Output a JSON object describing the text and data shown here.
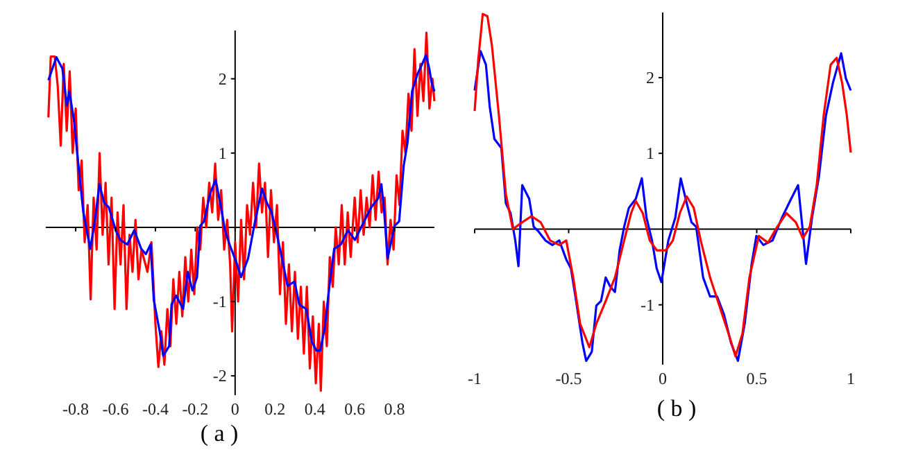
{
  "chart_data": [
    {
      "type": "line",
      "annotations": [
        "( a )"
      ],
      "xlim": [
        -0.95,
        1.0
      ],
      "ylim": [
        -2.26,
        2.65
      ],
      "xticks": [
        -0.8,
        -0.6,
        -0.4,
        -0.2,
        0,
        0.2,
        0.4,
        0.6,
        0.8
      ],
      "yticks": [
        -2,
        -1,
        1,
        2
      ],
      "series": [
        {
          "color": "#ff0000",
          "x": [
            -0.937,
            -0.925,
            -0.905,
            -0.89,
            -0.875,
            -0.86,
            -0.845,
            -0.83,
            -0.815,
            -0.8,
            -0.785,
            -0.77,
            -0.755,
            -0.74,
            -0.725,
            -0.71,
            -0.695,
            -0.68,
            -0.665,
            -0.65,
            -0.635,
            -0.62,
            -0.605,
            -0.59,
            -0.575,
            -0.56,
            -0.545,
            -0.53,
            -0.515,
            -0.5,
            -0.485,
            -0.47,
            -0.44,
            -0.42,
            -0.4,
            -0.385,
            -0.37,
            -0.355,
            -0.34,
            -0.325,
            -0.31,
            -0.295,
            -0.28,
            -0.265,
            -0.25,
            -0.235,
            -0.22,
            -0.205,
            -0.19,
            -0.175,
            -0.16,
            -0.145,
            -0.13,
            -0.115,
            -0.1,
            -0.085,
            -0.07,
            -0.055,
            -0.04,
            -0.025,
            -0.015,
            0.0,
            0.015,
            0.03,
            0.045,
            0.06,
            0.075,
            0.09,
            0.105,
            0.12,
            0.135,
            0.15,
            0.165,
            0.18,
            0.195,
            0.21,
            0.225,
            0.24,
            0.255,
            0.27,
            0.285,
            0.3,
            0.315,
            0.33,
            0.345,
            0.36,
            0.375,
            0.39,
            0.405,
            0.42,
            0.43,
            0.445,
            0.46,
            0.475,
            0.49,
            0.505,
            0.52,
            0.535,
            0.55,
            0.565,
            0.58,
            0.6,
            0.615,
            0.63,
            0.645,
            0.66,
            0.675,
            0.69,
            0.705,
            0.72,
            0.735,
            0.75,
            0.765,
            0.78,
            0.795,
            0.81,
            0.825,
            0.84,
            0.855,
            0.87,
            0.885,
            0.9,
            0.915,
            0.93,
            0.945,
            0.96,
            0.975,
            0.99,
            1.0
          ],
          "values": [
            1.48,
            2.3,
            2.3,
            1.9,
            1.1,
            2.2,
            1.3,
            2.1,
            1.0,
            1.6,
            0.5,
            0.9,
            -0.2,
            0.3,
            -0.97,
            0.4,
            -0.3,
            1.0,
            -0.1,
            0.6,
            -0.5,
            0.4,
            -1.1,
            0.2,
            -0.5,
            0.3,
            -1.1,
            -0.1,
            -0.6,
            0.1,
            -0.7,
            -0.3,
            -0.6,
            -0.2,
            -1.3,
            -1.88,
            -1.4,
            -1.85,
            -1.1,
            -1.6,
            -0.7,
            -1.3,
            -0.6,
            -1.2,
            -0.4,
            -1.0,
            -0.3,
            -0.9,
            0.0,
            -0.3,
            0.4,
            0.0,
            0.6,
            0.2,
            0.86,
            0.1,
            0.5,
            -0.3,
            0.1,
            -0.5,
            -1.4,
            -0.2,
            -1.0,
            0.1,
            -0.7,
            0.3,
            -0.1,
            0.6,
            0.0,
            0.86,
            0.2,
            0.6,
            -0.4,
            0.5,
            -0.2,
            0.3,
            -0.9,
            -0.2,
            -1.3,
            -0.5,
            -1.4,
            -0.6,
            -1.5,
            -0.8,
            -1.7,
            -0.8,
            -1.9,
            -1.2,
            -2.1,
            -1.3,
            -2.2,
            -1.0,
            -1.6,
            -0.4,
            -0.8,
            0.0,
            -0.5,
            0.3,
            -0.5,
            0.2,
            -0.4,
            0.4,
            -0.2,
            0.5,
            -0.1,
            0.4,
            0.0,
            0.7,
            0.1,
            0.75,
            0.2,
            0.4,
            -0.5,
            0.1,
            -0.3,
            0.7,
            0.3,
            1.3,
            1.0,
            1.8,
            1.3,
            2.4,
            1.5,
            2.2,
            1.7,
            2.62,
            1.6,
            2.0,
            1.7
          ]
        },
        {
          "color": "#0000ff",
          "x": [
            -0.937,
            -0.897,
            -0.867,
            -0.844,
            -0.832,
            -0.809,
            -0.786,
            -0.762,
            -0.727,
            -0.704,
            -0.681,
            -0.657,
            -0.634,
            -0.599,
            -0.576,
            -0.541,
            -0.506,
            -0.471,
            -0.448,
            -0.424,
            -0.408,
            -0.378,
            -0.361,
            -0.331,
            -0.319,
            -0.296,
            -0.261,
            -0.238,
            -0.214,
            -0.191,
            -0.175,
            -0.156,
            -0.126,
            -0.098,
            -0.075,
            -0.051,
            -0.028,
            0.007,
            0.03,
            0.065,
            0.1,
            0.135,
            0.159,
            0.182,
            0.205,
            0.24,
            0.263,
            0.298,
            0.322,
            0.357,
            0.385,
            0.408,
            0.427,
            0.45,
            0.473,
            0.497,
            0.531,
            0.566,
            0.601,
            0.636,
            0.683,
            0.718,
            0.734,
            0.748,
            0.765,
            0.8,
            0.823,
            0.846,
            0.865,
            0.888,
            0.916,
            0.939,
            0.958,
            0.974,
            0.986,
            1.0
          ],
          "values": [
            1.98,
            2.29,
            2.14,
            1.64,
            1.83,
            1.45,
            0.83,
            0.21,
            -0.29,
            0.08,
            0.58,
            0.33,
            0.27,
            -0.04,
            -0.17,
            -0.23,
            -0.04,
            -0.29,
            -0.36,
            -0.23,
            -0.98,
            -1.41,
            -1.73,
            -1.6,
            -1.04,
            -0.92,
            -1.1,
            -0.6,
            -0.85,
            -0.67,
            0.02,
            0.08,
            0.45,
            0.64,
            0.33,
            -0.04,
            -0.23,
            -0.48,
            -0.67,
            -0.42,
            0.08,
            0.52,
            0.33,
            0.21,
            -0.04,
            -0.48,
            -0.79,
            -0.73,
            -1.04,
            -1.1,
            -1.54,
            -1.66,
            -1.66,
            -1.35,
            -0.79,
            -0.29,
            -0.23,
            -0.04,
            -0.17,
            0.02,
            0.27,
            0.39,
            0.58,
            0.21,
            -0.42,
            0.02,
            0.08,
            0.83,
            1.14,
            1.83,
            2.07,
            2.2,
            2.32,
            2.14,
            1.95,
            1.83
          ]
        }
      ]
    },
    {
      "type": "line",
      "annotations": [
        "( b )"
      ],
      "xlim": [
        -1,
        1
      ],
      "ylim": [
        -1.79,
        2.86
      ],
      "xticks": [
        -1,
        -0.5,
        0,
        0.5,
        1
      ],
      "yticks": [
        -1,
        1,
        2
      ],
      "series": [
        {
          "color": "#0000ff",
          "x": [
            -1.0,
            -0.969,
            -0.94,
            -0.92,
            -0.895,
            -0.858,
            -0.834,
            -0.809,
            -0.784,
            -0.767,
            -0.747,
            -0.71,
            -0.686,
            -0.661,
            -0.624,
            -0.587,
            -0.55,
            -0.513,
            -0.488,
            -0.464,
            -0.427,
            -0.407,
            -0.377,
            -0.353,
            -0.328,
            -0.303,
            -0.279,
            -0.254,
            -0.229,
            -0.205,
            -0.18,
            -0.143,
            -0.111,
            -0.086,
            -0.057,
            -0.032,
            -0.007,
            0.03,
            0.067,
            0.096,
            0.128,
            0.153,
            0.178,
            0.215,
            0.252,
            0.289,
            0.326,
            0.363,
            0.4,
            0.436,
            0.473,
            0.498,
            0.535,
            0.584,
            0.634,
            0.683,
            0.72,
            0.745,
            0.762,
            0.794,
            0.831,
            0.868,
            0.905,
            0.949,
            0.974,
            1.0
          ],
          "values": [
            1.83,
            2.35,
            2.17,
            1.62,
            1.19,
            1.07,
            0.34,
            0.21,
            -0.15,
            -0.49,
            0.58,
            0.4,
            0.03,
            -0.03,
            -0.15,
            -0.21,
            -0.15,
            -0.4,
            -0.52,
            -0.89,
            -1.5,
            -1.74,
            -1.62,
            -1.01,
            -0.95,
            -0.64,
            -0.76,
            -0.83,
            -0.28,
            0.03,
            0.28,
            0.4,
            0.67,
            0.15,
            -0.15,
            -0.52,
            -0.7,
            -0.15,
            0.15,
            0.67,
            0.34,
            0.09,
            0.03,
            -0.64,
            -0.89,
            -0.89,
            -1.13,
            -1.5,
            -1.74,
            -1.25,
            -0.46,
            -0.09,
            -0.21,
            -0.15,
            0.15,
            0.4,
            0.58,
            -0.03,
            -0.46,
            0.15,
            0.7,
            1.5,
            1.93,
            2.32,
            1.99,
            1.83
          ]
        },
        {
          "color": "#ff0000",
          "x": [
            -1.0,
            -0.981,
            -0.957,
            -0.932,
            -0.908,
            -0.871,
            -0.834,
            -0.797,
            -0.747,
            -0.698,
            -0.649,
            -0.599,
            -0.55,
            -0.513,
            -0.476,
            -0.439,
            -0.39,
            -0.353,
            -0.303,
            -0.254,
            -0.205,
            -0.168,
            -0.143,
            -0.106,
            -0.069,
            -0.032,
            0.017,
            0.054,
            0.091,
            0.128,
            0.165,
            0.202,
            0.252,
            0.301,
            0.35,
            0.387,
            0.424,
            0.461,
            0.511,
            0.56,
            0.609,
            0.658,
            0.708,
            0.745,
            0.782,
            0.819,
            0.856,
            0.893,
            0.925,
            0.954,
            0.979,
            1.0
          ],
          "values": [
            1.56,
            2.23,
            2.84,
            2.81,
            2.42,
            1.5,
            0.46,
            0,
            0.09,
            0.17,
            0.09,
            -0.15,
            -0.21,
            -0.15,
            -0.64,
            -1.25,
            -1.56,
            -1.25,
            -0.95,
            -0.64,
            -0.15,
            0.21,
            0.37,
            0.21,
            -0.15,
            -0.28,
            -0.28,
            -0.15,
            0.21,
            0.43,
            0.28,
            -0.15,
            -0.64,
            -1.01,
            -1.38,
            -1.68,
            -1.38,
            -0.64,
            -0.09,
            -0.18,
            0.03,
            0.21,
            0.09,
            -0.12,
            0.03,
            0.58,
            1.5,
            2.17,
            2.26,
            1.93,
            1.5,
            1.01
          ]
        }
      ]
    }
  ]
}
